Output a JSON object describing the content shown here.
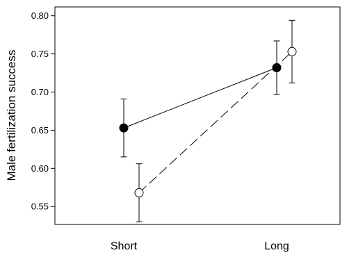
{
  "chart_data": {
    "type": "line",
    "title": "",
    "xlabel": "",
    "ylabel": "Male fertilization success",
    "categories": [
      "Short",
      "Long"
    ],
    "ylim": [
      0.52,
      0.81
    ],
    "yticks": [
      "0.80",
      "0.75",
      "0.70",
      "0.65",
      "0.60",
      "0.55"
    ],
    "grid": false,
    "legend": "none",
    "series": [
      {
        "marker": "filled-circle",
        "line_style": "solid",
        "color": "#000000",
        "values": [
          0.653,
          0.732
        ],
        "error_lower": [
          0.615,
          0.697
        ],
        "error_upper": [
          0.691,
          0.767
        ]
      },
      {
        "marker": "open-circle",
        "line_style": "dashed",
        "color": "#000000",
        "values": [
          0.568,
          0.753
        ],
        "error_lower": [
          0.53,
          0.712
        ],
        "error_upper": [
          0.606,
          0.794
        ]
      }
    ]
  }
}
